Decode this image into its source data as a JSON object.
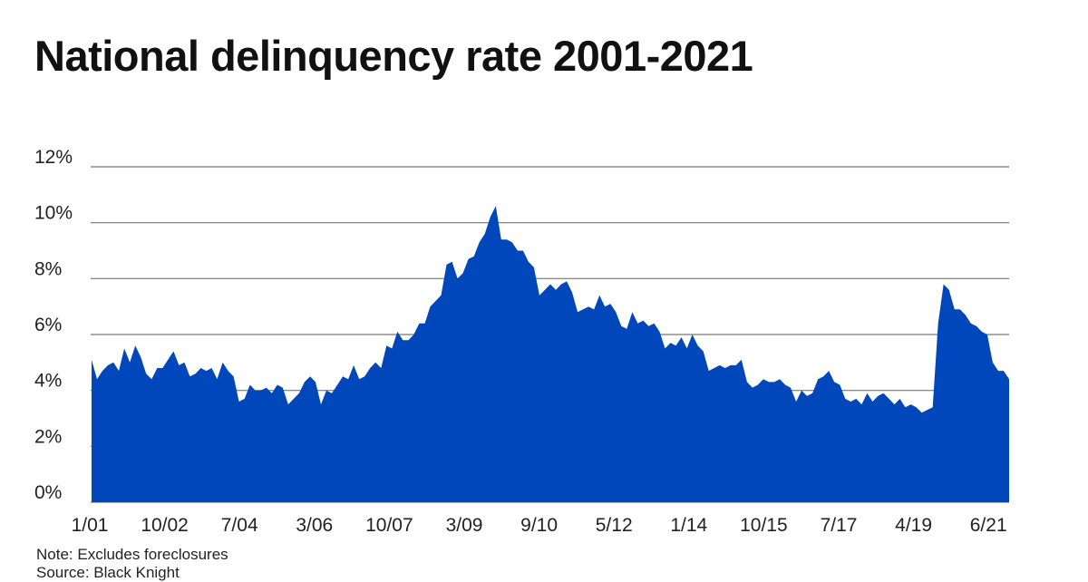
{
  "chart_data": {
    "type": "area",
    "title": "National delinquency rate 2001-2021",
    "xlabel": "",
    "ylabel": "",
    "x_range": [
      "1/01",
      "6/21"
    ],
    "x_tick_labels": [
      "1/01",
      "10/02",
      "7/04",
      "3/06",
      "10/07",
      "3/09",
      "9/10",
      "5/12",
      "1/14",
      "10/15",
      "7/17",
      "4/19",
      "6/21"
    ],
    "y_tick_labels": [
      "0%",
      "2%",
      "4%",
      "6%",
      "8%",
      "10%",
      "12%"
    ],
    "y_ticks": [
      0,
      2,
      4,
      6,
      8,
      10,
      12
    ],
    "ylim": [
      0,
      12
    ],
    "grid": true,
    "fill_color": "#0047BB",
    "values": [
      5.1,
      4.4,
      4.7,
      4.9,
      5.0,
      4.7,
      5.5,
      5.0,
      5.6,
      5.2,
      4.6,
      4.4,
      4.8,
      4.8,
      5.1,
      5.4,
      4.9,
      5.0,
      4.5,
      4.6,
      4.8,
      4.7,
      4.8,
      4.4,
      5.0,
      4.7,
      4.5,
      3.6,
      3.7,
      4.2,
      4.0,
      4.0,
      4.1,
      3.9,
      4.2,
      4.1,
      3.5,
      3.7,
      3.9,
      4.3,
      4.5,
      4.3,
      3.5,
      4.0,
      3.9,
      4.2,
      4.5,
      4.4,
      4.9,
      4.4,
      4.5,
      4.8,
      5.0,
      4.8,
      5.6,
      5.5,
      6.1,
      5.8,
      5.8,
      6.0,
      6.4,
      6.4,
      7.0,
      7.2,
      7.4,
      8.5,
      8.6,
      8.0,
      8.2,
      8.7,
      8.8,
      9.3,
      9.6,
      10.2,
      10.6,
      9.4,
      9.4,
      9.3,
      9.0,
      9.0,
      8.6,
      8.4,
      7.4,
      7.6,
      7.8,
      7.6,
      7.8,
      7.9,
      7.5,
      6.8,
      6.9,
      7.0,
      6.9,
      7.4,
      7.0,
      7.1,
      6.8,
      6.3,
      6.2,
      6.8,
      6.4,
      6.5,
      6.3,
      6.4,
      6.1,
      5.5,
      5.7,
      5.6,
      5.9,
      5.5,
      6.0,
      5.6,
      5.4,
      4.7,
      4.8,
      4.9,
      4.8,
      4.9,
      4.9,
      5.1,
      4.3,
      4.1,
      4.2,
      4.4,
      4.3,
      4.3,
      4.4,
      4.2,
      4.1,
      3.6,
      4.0,
      3.8,
      3.9,
      4.4,
      4.5,
      4.7,
      4.3,
      4.2,
      3.7,
      3.6,
      3.7,
      3.5,
      3.9,
      3.6,
      3.8,
      3.9,
      3.7,
      3.5,
      3.7,
      3.4,
      3.5,
      3.4,
      3.2,
      3.3,
      3.4,
      6.4,
      7.8,
      7.6,
      6.9,
      6.9,
      6.7,
      6.4,
      6.3,
      6.1,
      6.0,
      5.0,
      4.7,
      4.7,
      4.4
    ]
  },
  "notes": {
    "note": "Note: Excludes foreclosures",
    "source": "Source: Black Knight"
  }
}
